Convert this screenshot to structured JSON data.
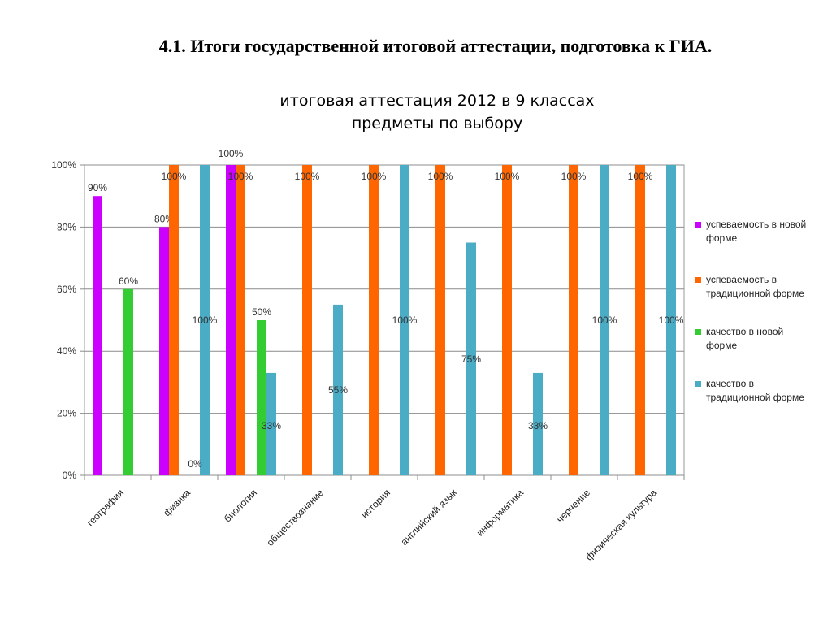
{
  "slide": {
    "title": "4.1. Итоги  государственной итоговой аттестации, подготовка к ГИА."
  },
  "chart_data": {
    "type": "bar",
    "title_lines": [
      "итоговая аттестация 2012 в 9 классах",
      "предметы по выбору"
    ],
    "categories": [
      "география",
      "физика",
      "биология",
      "обществознание",
      "история",
      "английский язык",
      "информатика",
      "черчение",
      "физическая культура"
    ],
    "y_ticks": [
      "0%",
      "20%",
      "40%",
      "60%",
      "80%",
      "100%"
    ],
    "ylim": [
      0,
      100
    ],
    "grid": true,
    "legend_position": "right",
    "series": [
      {
        "name": "успеваемость в новой форме",
        "color": "#CC00FF",
        "values": [
          90,
          80,
          100,
          null,
          null,
          null,
          null,
          null,
          null
        ],
        "labels": [
          "90%",
          "80%",
          "100%",
          "",
          "",
          "",
          "",
          "",
          ""
        ]
      },
      {
        "name": "успеваемость в традиционной форме",
        "color": "#FF6600",
        "values": [
          null,
          100,
          100,
          100,
          100,
          100,
          100,
          100,
          100
        ],
        "labels": [
          "",
          "100%",
          "100%",
          "100%",
          "100%",
          "100%",
          "100%",
          "100%",
          "100%"
        ]
      },
      {
        "name": "качество в новой форме",
        "color": "#33CC33",
        "values": [
          60,
          null,
          50,
          null,
          null,
          null,
          null,
          null,
          null
        ],
        "labels": [
          "60%",
          "",
          "50%",
          "",
          "",
          "",
          "",
          "",
          ""
        ]
      },
      {
        "name": "качество в традиционной форме",
        "color": "#4BACC6",
        "values": [
          null,
          100,
          33,
          55,
          100,
          75,
          33,
          100,
          100
        ],
        "labels": [
          "",
          "100%",
          "33%",
          "55%",
          "100%",
          "75%",
          "33%",
          "100%",
          "100%"
        ]
      }
    ],
    "extra_labels": [
      {
        "category_index": 1,
        "series_index": 2,
        "text": "0%"
      }
    ]
  }
}
